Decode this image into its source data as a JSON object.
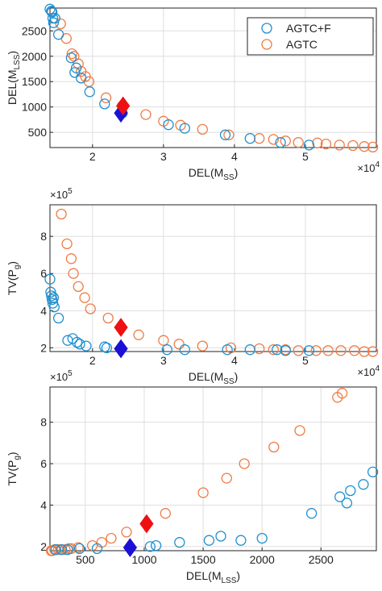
{
  "colors": {
    "agtc_f": "#1f8fcf",
    "agtc": "#ee7b45",
    "marker_blue": "#1a10d6",
    "marker_red": "#ee1111",
    "grid": "#dedede",
    "axis": "#222222"
  },
  "legend": {
    "entries": [
      "AGTC+F",
      "AGTC"
    ],
    "placement": "top-right"
  },
  "chart_data": [
    {
      "type": "scatter",
      "xlabel_base": "DEL(M",
      "xlabel_sub": "SS",
      "xlabel_close": ")",
      "ylabel_base": "DEL(M",
      "ylabel_sub": "LSS",
      "ylabel_close": ")",
      "x_exponent_base": "×10",
      "x_exponent_power": "4",
      "y_exponent_base": "",
      "y_exponent_power": "",
      "x_ticks": [
        2,
        3,
        4,
        5
      ],
      "x_tick_labels": [
        "2",
        "3",
        "4",
        "5"
      ],
      "y_ticks": [
        500,
        1000,
        1500,
        2000,
        2500
      ],
      "y_tick_labels": [
        "500",
        "1000",
        "1500",
        "2000",
        "2500"
      ],
      "xlim": [
        1.4,
        6.0
      ],
      "ylim": [
        200,
        2950
      ],
      "grid": true,
      "legend": true,
      "series": [
        {
          "name": "AGTC+F",
          "x": [
            1.4,
            1.42,
            1.43,
            1.44,
            1.45,
            1.47,
            1.52,
            1.7,
            1.75,
            1.77,
            1.84,
            1.96,
            2.17,
            2.42,
            3.07,
            3.3,
            3.87,
            4.22,
            4.65,
            5.05
          ],
          "y": [
            2930,
            2890,
            2870,
            2750,
            2660,
            2750,
            2430,
            1970,
            1680,
            1770,
            1570,
            1300,
            1060,
            880,
            650,
            580,
            450,
            380,
            300,
            250
          ]
        },
        {
          "name": "AGTC",
          "x": [
            1.55,
            1.63,
            1.71,
            1.74,
            1.8,
            1.84,
            1.9,
            1.95,
            2.19,
            2.42,
            2.75,
            3.0,
            3.24,
            3.55,
            3.92,
            4.35,
            4.55,
            4.72,
            4.9,
            5.17,
            5.29,
            5.48,
            5.67,
            5.83,
            5.95
          ],
          "y": [
            2640,
            2350,
            2050,
            2000,
            1850,
            1700,
            1600,
            1500,
            1180,
            1020,
            850,
            720,
            640,
            560,
            450,
            380,
            360,
            330,
            300,
            290,
            270,
            250,
            240,
            220,
            210
          ]
        }
      ],
      "markers": [
        {
          "name": "AGTC+F",
          "x": 2.4,
          "y": 880
        },
        {
          "name": "AGTC",
          "x": 2.43,
          "y": 1020
        }
      ]
    },
    {
      "type": "scatter",
      "xlabel_base": "DEL(M",
      "xlabel_sub": "SS",
      "xlabel_close": ")",
      "ylabel_base": "TV(P",
      "ylabel_sub": "g",
      "ylabel_close": ")",
      "x_exponent_base": "×10",
      "x_exponent_power": "4",
      "y_exponent_base": "×10",
      "y_exponent_power": "5",
      "x_ticks": [
        2,
        3,
        4,
        5
      ],
      "x_tick_labels": [
        "2",
        "3",
        "4",
        "5"
      ],
      "y_ticks": [
        2,
        4,
        6,
        8
      ],
      "y_tick_labels": [
        "2",
        "4",
        "6",
        "8"
      ],
      "xlim": [
        1.4,
        6.0
      ],
      "ylim": [
        1.8,
        9.7
      ],
      "grid": true,
      "legend": false,
      "series": [
        {
          "name": "AGTC+F",
          "x": [
            1.4,
            1.41,
            1.42,
            1.43,
            1.44,
            1.45,
            1.46,
            1.52,
            1.65,
            1.72,
            1.78,
            1.82,
            1.91,
            2.17,
            2.2,
            3.05,
            3.3,
            3.9,
            4.22,
            4.6,
            4.72,
            5.05
          ],
          "y": [
            5.7,
            5.0,
            4.8,
            4.6,
            4.4,
            4.7,
            4.2,
            3.6,
            2.4,
            2.5,
            2.3,
            2.2,
            2.1,
            2.05,
            2.0,
            1.9,
            1.9,
            1.9,
            1.9,
            1.9,
            1.85,
            1.85
          ]
        },
        {
          "name": "AGTC",
          "x": [
            1.56,
            1.64,
            1.7,
            1.73,
            1.8,
            1.89,
            1.97,
            2.22,
            2.65,
            3.0,
            3.22,
            3.55,
            3.95,
            4.35,
            4.55,
            4.72,
            4.9,
            5.15,
            5.32,
            5.5,
            5.69,
            5.83,
            5.95
          ],
          "y": [
            9.2,
            7.6,
            6.8,
            6.0,
            5.3,
            4.7,
            4.1,
            3.6,
            2.7,
            2.4,
            2.2,
            2.1,
            2.0,
            1.95,
            1.9,
            1.9,
            1.85,
            1.85,
            1.85,
            1.85,
            1.85,
            1.8,
            1.8
          ]
        }
      ],
      "markers": [
        {
          "name": "AGTC+F",
          "x": 2.4,
          "y": 1.95
        },
        {
          "name": "AGTC",
          "x": 2.4,
          "y": 3.1
        }
      ]
    },
    {
      "type": "scatter",
      "xlabel_base": "DEL(M",
      "xlabel_sub": "LSS",
      "xlabel_close": ")",
      "ylabel_base": "TV(P",
      "ylabel_sub": "g",
      "ylabel_close": ")",
      "x_exponent_base": "",
      "x_exponent_power": "",
      "y_exponent_base": "×10",
      "y_exponent_power": "5",
      "x_ticks": [
        500,
        1000,
        1500,
        2000,
        2500
      ],
      "x_tick_labels": [
        "500",
        "1000",
        "1500",
        "2000",
        "2500"
      ],
      "y_ticks": [
        2,
        4,
        6,
        8
      ],
      "y_tick_labels": [
        "2",
        "4",
        "6",
        "8"
      ],
      "xlim": [
        200,
        2970
      ],
      "ylim": [
        1.8,
        9.7
      ],
      "grid": true,
      "legend": false,
      "series": [
        {
          "name": "AGTC+F",
          "x": [
            250,
            300,
            350,
            450,
            600,
            880,
            1050,
            1100,
            1300,
            1550,
            1650,
            1820,
            2000,
            2420,
            2660,
            2720,
            2750,
            2860,
            2940
          ],
          "y": [
            1.85,
            1.85,
            1.85,
            1.9,
            1.9,
            1.95,
            2.0,
            2.05,
            2.2,
            2.3,
            2.5,
            2.3,
            2.4,
            3.6,
            4.4,
            4.1,
            4.7,
            5.0,
            5.6
          ]
        },
        {
          "name": "AGTC",
          "x": [
            210,
            220,
            240,
            270,
            290,
            330,
            360,
            380,
            440,
            560,
            640,
            720,
            850,
            1020,
            1180,
            1500,
            1700,
            1850,
            2100,
            2320,
            2640,
            2680
          ],
          "y": [
            1.8,
            1.8,
            1.85,
            1.85,
            1.85,
            1.85,
            1.9,
            1.9,
            1.95,
            2.05,
            2.2,
            2.4,
            2.7,
            3.1,
            3.6,
            4.6,
            5.3,
            6.0,
            6.8,
            7.6,
            9.2,
            9.4
          ]
        }
      ],
      "markers": [
        {
          "name": "AGTC+F",
          "x": 880,
          "y": 1.95
        },
        {
          "name": "AGTC",
          "x": 1020,
          "y": 3.1
        }
      ]
    }
  ]
}
